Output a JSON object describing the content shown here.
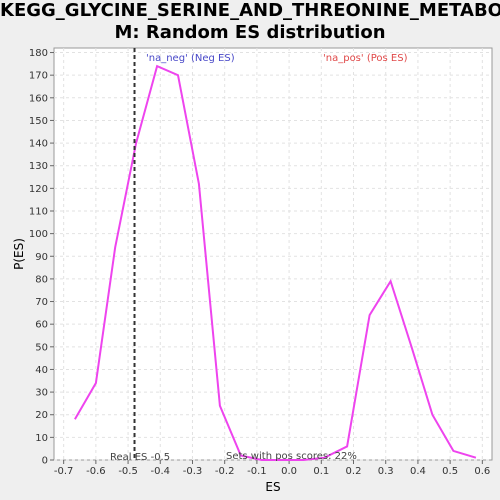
{
  "chart_data": {
    "type": "line",
    "title_line1": "KEGG_GLYCINE_SERINE_AND_THREONINE_METABOLIS",
    "title_line2": "M: Random ES distribution",
    "xlabel": "ES",
    "ylabel": "P(ES)",
    "xlim": [
      -0.73,
      0.63
    ],
    "ylim": [
      0,
      182
    ],
    "x_ticks": [
      -0.7,
      -0.6,
      -0.5,
      -0.4,
      -0.3,
      -0.2,
      -0.1,
      0.0,
      0.1,
      0.2,
      0.3,
      0.4,
      0.5,
      0.6
    ],
    "x_tick_labels": [
      "-0.7",
      "-0.6",
      "-0.5",
      "-0.4",
      "-0.3",
      "-0.2",
      "-0.1",
      "0.0",
      "0.1",
      "0.2",
      "0.3",
      "0.4",
      "0.5",
      "0.6"
    ],
    "y_ticks": [
      0,
      10,
      20,
      30,
      40,
      50,
      60,
      70,
      80,
      90,
      100,
      110,
      120,
      130,
      140,
      150,
      160,
      170,
      180
    ],
    "grid": true,
    "line_color": "#ee44ee",
    "series": [
      {
        "x": [
          -0.665,
          -0.6,
          -0.54,
          -0.475,
          -0.41,
          -0.345,
          -0.28,
          -0.215,
          -0.15,
          -0.085,
          -0.02,
          0.045,
          0.11,
          0.18,
          0.25,
          0.315,
          0.38,
          0.445,
          0.51,
          0.58
        ],
        "y": [
          18,
          34,
          94,
          140,
          174,
          170,
          122,
          24,
          2,
          0,
          0,
          0,
          1,
          6,
          64,
          79,
          50,
          20,
          4,
          1
        ]
      }
    ],
    "real_es": -0.48,
    "real_es_label": "Real ES -0.5",
    "legend_neg": "'na_neg' (Neg ES)",
    "legend_pos": "'na_pos' (Pos ES)",
    "pos_scores_label": "Sets with pos scores: 22%"
  }
}
